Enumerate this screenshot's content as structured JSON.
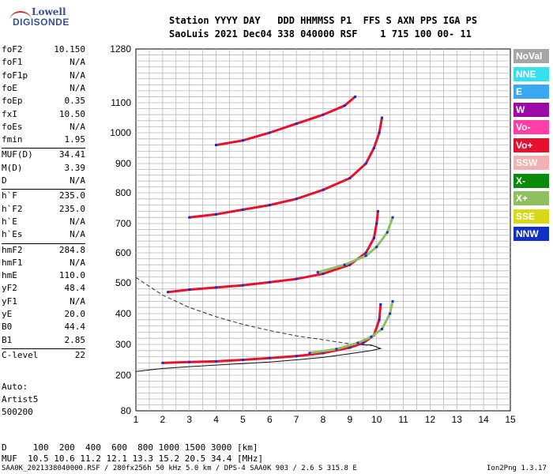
{
  "logo": {
    "line1": "Lowell",
    "line2": "DIGISONDE"
  },
  "header": {
    "row1": "Station YYYY DAY   DDD HHMMSS P1  FFS S AXN PPS IGA PS",
    "row2": "SaoLuis 2021 Dec04 338 040000 RSF    1 715 100 00- 11"
  },
  "params": [
    {
      "k": "foF2",
      "v": "10.150"
    },
    {
      "k": "foF1",
      "v": "N/A"
    },
    {
      "k": "foF1p",
      "v": "N/A"
    },
    {
      "k": "foE",
      "v": "N/A"
    },
    {
      "k": "foEp",
      "v": "0.35"
    },
    {
      "k": "fxI",
      "v": "10.50"
    },
    {
      "k": "foEs",
      "v": "N/A"
    },
    {
      "k": "fmin",
      "v": "1.95"
    },
    {
      "k": "MUF(D)",
      "v": "34.41"
    },
    {
      "k": "M(D)",
      "v": "3.39"
    },
    {
      "k": "D",
      "v": "N/A"
    },
    {
      "k": "h`F",
      "v": "235.0"
    },
    {
      "k": "h`F2",
      "v": "235.0"
    },
    {
      "k": "h`E",
      "v": "N/A"
    },
    {
      "k": "h`Es",
      "v": "N/A"
    },
    {
      "k": "hmF2",
      "v": "284.8"
    },
    {
      "k": "hmF1",
      "v": "N/A"
    },
    {
      "k": "hmE",
      "v": "110.0"
    },
    {
      "k": "yF2",
      "v": "48.4"
    },
    {
      "k": "yF1",
      "v": "N/A"
    },
    {
      "k": "yE",
      "v": "20.0"
    },
    {
      "k": "B0",
      "v": "44.4"
    },
    {
      "k": "B1",
      "v": "2.85"
    },
    {
      "k": "C-level",
      "v": "22"
    }
  ],
  "auto": {
    "line1": "Auto:",
    "line2": "Artist5",
    "line3": "500200"
  },
  "footer": {
    "d_row": "D     100  200  400  600  800 1000 1500 3000 [km]",
    "muf_row": "MUF  10.5 10.6 11.2 12.1 13.3 15.2 20.5 34.4 [MHz]",
    "file_row": "SAA0K_2021338040000.RSF / 280fx256h 50 kHz 5.0 km / DPS-4 SAA0K 903 / 2.6 S 315.8 E",
    "version": "Ion2Png 1.3.17"
  },
  "legend": [
    {
      "label": "NoVal",
      "color": "#a6a6a6"
    },
    {
      "label": "NNE",
      "color": "#35e0f0"
    },
    {
      "label": "E",
      "color": "#3aa8f0"
    },
    {
      "label": "W",
      "color": "#9b0aa6"
    },
    {
      "label": "Vo-",
      "color": "#ff3fa6"
    },
    {
      "label": "Vo+",
      "color": "#e8102e"
    },
    {
      "label": "SSW",
      "color": "#f2b0b0"
    },
    {
      "label": "X-",
      "color": "#0a8a0a"
    },
    {
      "label": "X+",
      "color": "#8fc060"
    },
    {
      "label": "SSE",
      "color": "#d8d818"
    },
    {
      "label": "NNW",
      "color": "#1030c8"
    }
  ],
  "chart_data": {
    "type": "scatter",
    "xlim": [
      1,
      15
    ],
    "ylim": [
      80,
      1280
    ],
    "x_ticks": [
      1,
      2,
      3,
      4,
      5,
      6,
      7,
      8,
      9,
      10,
      11,
      12,
      13,
      14,
      15
    ],
    "y_ticks": [
      80,
      200,
      300,
      400,
      500,
      600,
      700,
      800,
      900,
      1000,
      1100,
      1280
    ],
    "x_scale": "linear",
    "y_scale": "piecewise (compressed above 1100)",
    "grid": true,
    "legend_position": "right",
    "traces": [
      {
        "name": "Vo+",
        "points": [
          [
            2.0,
            240
          ],
          [
            3.0,
            243
          ],
          [
            4.0,
            245
          ],
          [
            5.0,
            250
          ],
          [
            6.0,
            256
          ],
          [
            7.0,
            262
          ],
          [
            8.0,
            272
          ],
          [
            9.0,
            290
          ],
          [
            9.5,
            305
          ],
          [
            9.9,
            330
          ],
          [
            10.1,
            380
          ],
          [
            10.15,
            430
          ]
        ]
      },
      {
        "name": "Vo+",
        "points": [
          [
            2.2,
            470
          ],
          [
            3.0,
            478
          ],
          [
            4.0,
            485
          ],
          [
            5.0,
            492
          ],
          [
            6.0,
            502
          ],
          [
            7.0,
            513
          ],
          [
            8.0,
            530
          ],
          [
            9.0,
            560
          ],
          [
            9.6,
            600
          ],
          [
            9.9,
            650
          ],
          [
            10.0,
            700
          ],
          [
            10.05,
            740
          ]
        ]
      },
      {
        "name": "Vo+",
        "points": [
          [
            3.0,
            720
          ],
          [
            4.0,
            730
          ],
          [
            5.0,
            745
          ],
          [
            6.0,
            760
          ],
          [
            7.0,
            780
          ],
          [
            8.0,
            810
          ],
          [
            9.0,
            850
          ],
          [
            9.6,
            900
          ],
          [
            9.9,
            950
          ],
          [
            10.1,
            1000
          ],
          [
            10.2,
            1050
          ]
        ]
      },
      {
        "name": "Vo+",
        "points": [
          [
            4.0,
            960
          ],
          [
            5.0,
            975
          ],
          [
            6.0,
            1000
          ],
          [
            7.0,
            1030
          ],
          [
            8.0,
            1060
          ],
          [
            8.8,
            1090
          ],
          [
            9.2,
            1120
          ]
        ]
      },
      {
        "name": "X+",
        "points": [
          [
            7.5,
            272
          ],
          [
            8.5,
            285
          ],
          [
            9.3,
            305
          ],
          [
            9.8,
            325
          ],
          [
            10.2,
            350
          ],
          [
            10.5,
            400
          ],
          [
            10.6,
            440
          ]
        ]
      },
      {
        "name": "X+",
        "points": [
          [
            7.8,
            535
          ],
          [
            8.8,
            560
          ],
          [
            9.6,
            590
          ],
          [
            10.0,
            620
          ],
          [
            10.4,
            670
          ],
          [
            10.6,
            720
          ]
        ]
      }
    ],
    "model_curves": [
      {
        "name": "profile-solid",
        "points": [
          [
            1.0,
            212
          ],
          [
            2.0,
            222
          ],
          [
            3.0,
            228
          ],
          [
            4.0,
            233
          ],
          [
            5.0,
            238
          ],
          [
            6.0,
            243
          ],
          [
            7.0,
            250
          ],
          [
            8.0,
            258
          ],
          [
            9.0,
            270
          ],
          [
            9.8,
            280
          ],
          [
            10.15,
            287
          ],
          [
            9.8,
            298
          ],
          [
            9.0,
            300
          ]
        ]
      },
      {
        "name": "profile-dashed",
        "points": [
          [
            1.0,
            518
          ],
          [
            2.0,
            460
          ],
          [
            3.0,
            420
          ],
          [
            4.0,
            390
          ],
          [
            5.0,
            365
          ],
          [
            6.0,
            345
          ],
          [
            7.0,
            328
          ],
          [
            8.0,
            315
          ],
          [
            9.0,
            302
          ],
          [
            10.0,
            295
          ]
        ]
      }
    ]
  }
}
